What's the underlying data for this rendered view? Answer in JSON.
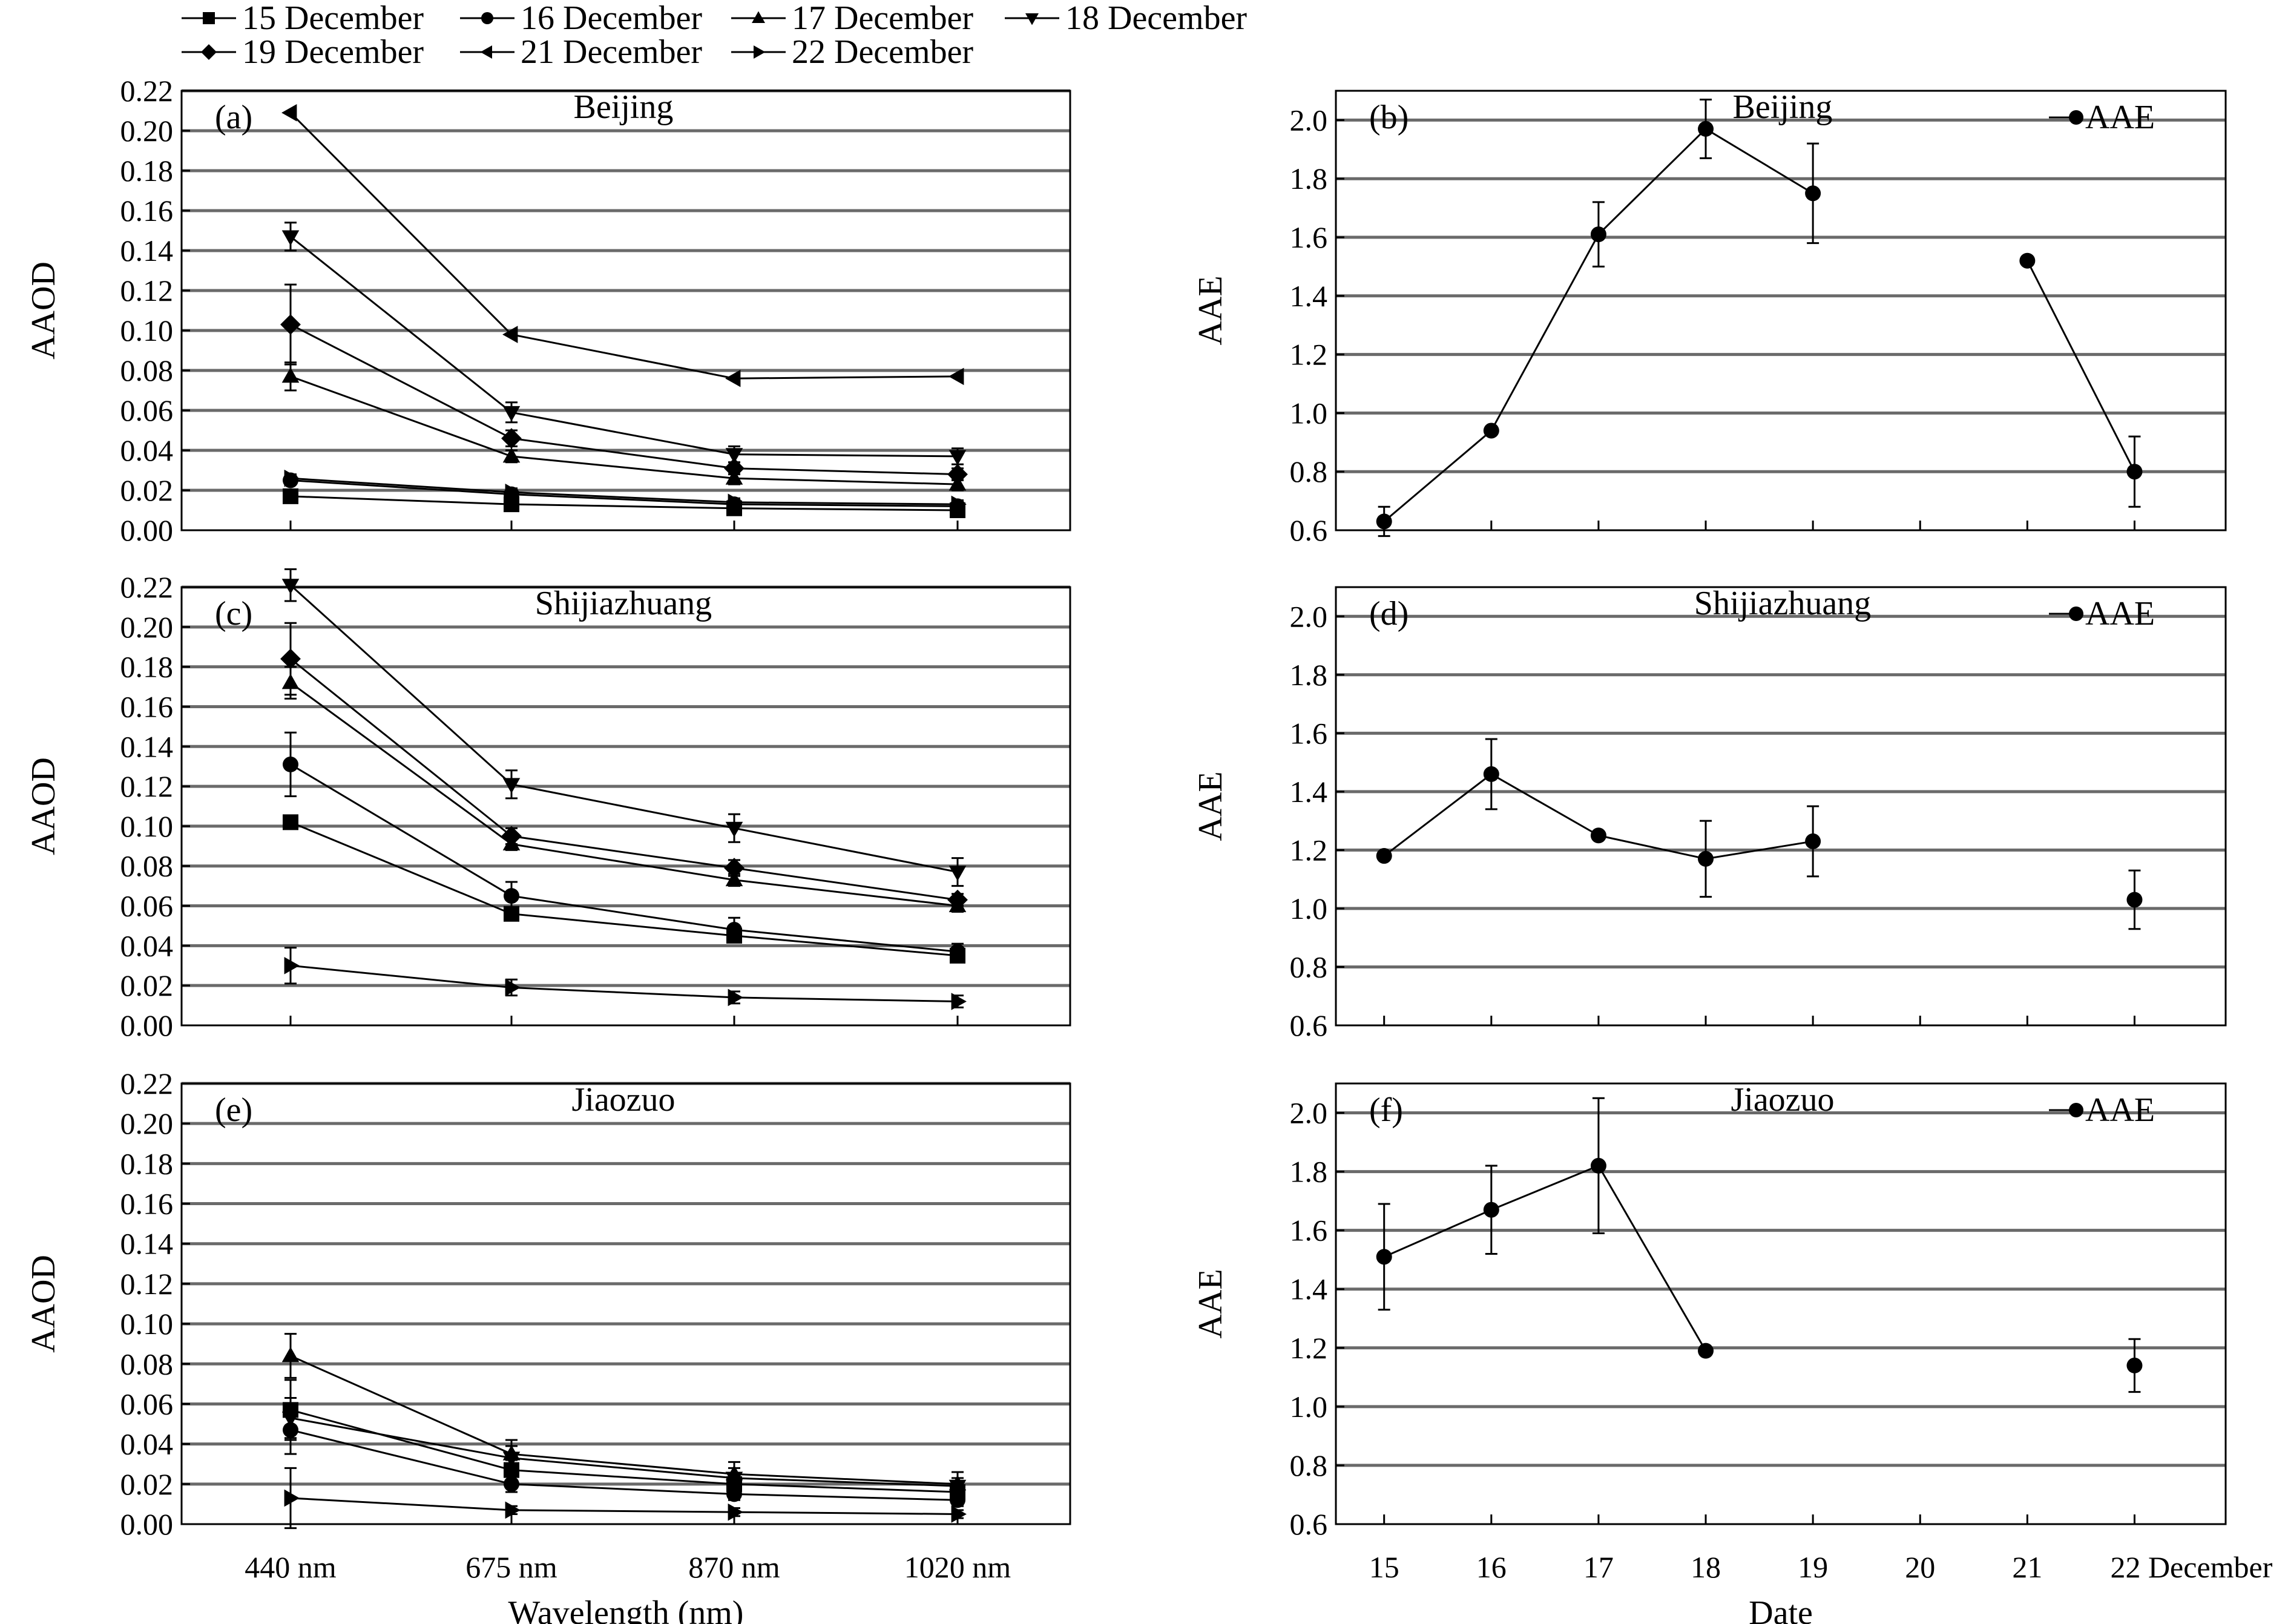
{
  "legend": {
    "entries": [
      {
        "key": "d15",
        "label": "15 December",
        "marker": "square"
      },
      {
        "key": "d16",
        "label": "16 December",
        "marker": "circle"
      },
      {
        "key": "d17",
        "label": "17 December",
        "marker": "triangle-up"
      },
      {
        "key": "d18",
        "label": "18 December",
        "marker": "triangle-down"
      },
      {
        "key": "d19",
        "label": "19 December",
        "marker": "diamond"
      },
      {
        "key": "d21",
        "label": "21 December",
        "marker": "triangle-left"
      },
      {
        "key": "d22",
        "label": "22 December",
        "marker": "triangle-right"
      }
    ]
  },
  "chart_data": [
    {
      "id": "a",
      "type": "line",
      "panel_label": "(a)",
      "title": "Beijing",
      "xlabel": "",
      "ylabel": "AAOD",
      "categories": [
        "440 nm",
        "675 nm",
        "870 nm",
        "1020 nm"
      ],
      "ylim": [
        0,
        0.22
      ],
      "yticks": [
        "0.00",
        "0.02",
        "0.04",
        "0.06",
        "0.08",
        "0.10",
        "0.12",
        "0.14",
        "0.16",
        "0.18",
        "0.20",
        "0.22"
      ],
      "grid": true,
      "series": [
        {
          "key": "d15",
          "name": "15 December",
          "marker": "square",
          "values": [
            0.017,
            0.013,
            0.011,
            0.01
          ],
          "errors": [
            0.002,
            0.002,
            0.002,
            0.002
          ]
        },
        {
          "key": "d16",
          "name": "16 December",
          "marker": "circle",
          "values": [
            0.025,
            0.018,
            0.013,
            0.012
          ],
          "errors": [
            0.002,
            0.002,
            0.002,
            0.002
          ]
        },
        {
          "key": "d17",
          "name": "17 December",
          "marker": "triangle-up",
          "values": [
            0.077,
            0.037,
            0.026,
            0.023
          ],
          "errors": [
            0.007,
            0.003,
            0.003,
            0.003
          ]
        },
        {
          "key": "d18",
          "name": "18 December",
          "marker": "triangle-down",
          "values": [
            0.147,
            0.059,
            0.038,
            0.037
          ],
          "errors": [
            0.007,
            0.005,
            0.004,
            0.004
          ]
        },
        {
          "key": "d19",
          "name": "19 December",
          "marker": "diamond",
          "values": [
            0.103,
            0.046,
            0.031,
            0.028
          ],
          "errors": [
            0.02,
            0.004,
            0.003,
            0.003
          ]
        },
        {
          "key": "d21",
          "name": "21 December",
          "marker": "triangle-left",
          "values": [
            0.209,
            0.098,
            0.076,
            0.077
          ],
          "errors": [
            0,
            0,
            0,
            0
          ]
        },
        {
          "key": "d22",
          "name": "22 December",
          "marker": "triangle-right",
          "values": [
            0.026,
            0.019,
            0.014,
            0.013
          ],
          "errors": [
            0.002,
            0.002,
            0.002,
            0.002
          ]
        }
      ]
    },
    {
      "id": "b",
      "type": "line",
      "panel_label": "(b)",
      "title": "Beijing",
      "xlabel": "",
      "ylabel": "AAE",
      "legend_label": "AAE",
      "x_ticks": [
        "15",
        "16",
        "17",
        "18",
        "19",
        "20",
        "21"
      ],
      "x": [
        15,
        16,
        17,
        18,
        19,
        21,
        22
      ],
      "values": [
        0.63,
        0.94,
        1.61,
        1.97,
        1.75,
        1.52,
        0.8
      ],
      "errors": [
        0.05,
        0,
        0.11,
        0.1,
        0.17,
        0,
        0.12
      ],
      "connect": [
        [
          15,
          16,
          17,
          18,
          19
        ],
        [
          21,
          22
        ]
      ],
      "xlim": [
        14.55,
        22.85
      ],
      "ylim": [
        0.6,
        2.1
      ],
      "yticks": [
        "0.6",
        "0.8",
        "1.0",
        "1.2",
        "1.4",
        "1.6",
        "1.8",
        "2.0"
      ],
      "grid": true
    },
    {
      "id": "c",
      "type": "line",
      "panel_label": "(c)",
      "title": "Shijiazhuang",
      "xlabel": "",
      "ylabel": "AAOD",
      "categories": [
        "440 nm",
        "675 nm",
        "870 nm",
        "1020 nm"
      ],
      "ylim": [
        0,
        0.22
      ],
      "yticks": [
        "0.00",
        "0.02",
        "0.04",
        "0.06",
        "0.08",
        "0.10",
        "0.12",
        "0.14",
        "0.16",
        "0.18",
        "0.20",
        "0.22"
      ],
      "grid": true,
      "series": [
        {
          "key": "d15",
          "name": "15 December",
          "marker": "square",
          "values": [
            0.102,
            0.056,
            0.045,
            0.035
          ],
          "errors": [
            0,
            0.003,
            0.003,
            0.003
          ]
        },
        {
          "key": "d16",
          "name": "16 December",
          "marker": "circle",
          "values": [
            0.131,
            0.065,
            0.048,
            0.037
          ],
          "errors": [
            0.016,
            0.007,
            0.006,
            0.004
          ]
        },
        {
          "key": "d17",
          "name": "17 December",
          "marker": "triangle-up",
          "values": [
            0.172,
            0.091,
            0.073,
            0.06
          ],
          "errors": [
            0.008,
            0.003,
            0.003,
            0.003
          ]
        },
        {
          "key": "d18",
          "name": "18 December",
          "marker": "triangle-down",
          "values": [
            0.221,
            0.121,
            0.099,
            0.077
          ],
          "errors": [
            0.008,
            0.007,
            0.007,
            0.007
          ]
        },
        {
          "key": "d19",
          "name": "19 December",
          "marker": "diamond",
          "values": [
            0.184,
            0.095,
            0.079,
            0.063
          ],
          "errors": [
            0.018,
            0.004,
            0.004,
            0.003
          ]
        },
        {
          "key": "d22",
          "name": "22 December",
          "marker": "triangle-right",
          "values": [
            0.03,
            0.019,
            0.014,
            0.012
          ],
          "errors": [
            0.009,
            0.004,
            0.003,
            0.003
          ]
        }
      ]
    },
    {
      "id": "d",
      "type": "line",
      "panel_label": "(d)",
      "title": "Shijiazhuang",
      "xlabel": "",
      "ylabel": "AAE",
      "legend_label": "AAE",
      "x_ticks": [
        "15",
        "16",
        "17",
        "18",
        "19",
        "20",
        "21"
      ],
      "x": [
        15,
        16,
        17,
        18,
        19,
        22
      ],
      "values": [
        1.18,
        1.46,
        1.25,
        1.17,
        1.23,
        1.03
      ],
      "errors": [
        0,
        0.12,
        0,
        0.13,
        0.12,
        0.1
      ],
      "connect": [
        [
          15,
          16,
          17,
          18,
          19
        ]
      ],
      "xlim": [
        14.55,
        22.85
      ],
      "ylim": [
        0.6,
        2.1
      ],
      "yticks": [
        "0.6",
        "0.8",
        "1.0",
        "1.2",
        "1.4",
        "1.6",
        "1.8",
        "2.0"
      ],
      "grid": true
    },
    {
      "id": "e",
      "type": "line",
      "panel_label": "(e)",
      "title": "Jiaozuo",
      "xlabel": "Wavelength (nm)",
      "ylabel": "AAOD",
      "categories": [
        "440 nm",
        "675 nm",
        "870 nm",
        "1020 nm"
      ],
      "x_tick_labels": [
        "440 nm",
        "675 nm",
        "870 nm",
        "1020 nm"
      ],
      "ylim": [
        0,
        0.22
      ],
      "yticks": [
        "0.00",
        "0.02",
        "0.04",
        "0.06",
        "0.08",
        "0.10",
        "0.12",
        "0.14",
        "0.16",
        "0.18",
        "0.20",
        "0.22"
      ],
      "grid": true,
      "series": [
        {
          "key": "d15",
          "name": "15 December",
          "marker": "square",
          "values": [
            0.057,
            0.027,
            0.02,
            0.016
          ],
          "errors": [
            0.015,
            0.005,
            0.004,
            0.003
          ]
        },
        {
          "key": "d16",
          "name": "16 December",
          "marker": "circle",
          "values": [
            0.047,
            0.02,
            0.015,
            0.012
          ],
          "errors": [
            0.012,
            0.004,
            0.003,
            0.003
          ]
        },
        {
          "key": "d17",
          "name": "17 December",
          "marker": "triangle-up",
          "values": [
            0.084,
            0.035,
            0.025,
            0.02
          ],
          "errors": [
            0.011,
            0.007,
            0.006,
            0.006
          ]
        },
        {
          "key": "d18",
          "name": "18 December",
          "marker": "triangle-down",
          "values": [
            0.053,
            0.033,
            0.023,
            0.019
          ],
          "errors": [
            0.01,
            0.006,
            0.005,
            0.004
          ]
        },
        {
          "key": "d22",
          "name": "22 December",
          "marker": "triangle-right",
          "values": [
            0.013,
            0.007,
            0.006,
            0.005
          ],
          "errors": [
            0.015,
            0.002,
            0.002,
            0.002
          ]
        }
      ]
    },
    {
      "id": "f",
      "type": "line",
      "panel_label": "(f)",
      "title": "Jiaozuo",
      "xlabel": "Date",
      "ylabel": "AAE",
      "legend_label": "AAE",
      "x_ticks": [
        "15",
        "16",
        "17",
        "18",
        "19",
        "20",
        "21"
      ],
      "x_tick_labels": [
        "15",
        "16",
        "17",
        "18",
        "19",
        "20",
        "21"
      ],
      "x_end_label": "22 December",
      "x": [
        15,
        16,
        17,
        18,
        22
      ],
      "values": [
        1.51,
        1.67,
        1.82,
        1.19,
        1.14
      ],
      "errors": [
        0.18,
        0.15,
        0.23,
        0,
        0.09
      ],
      "connect": [
        [
          15,
          16,
          17,
          18
        ]
      ],
      "xlim": [
        14.55,
        22.85
      ],
      "ylim": [
        0.6,
        2.1
      ],
      "yticks": [
        "0.6",
        "0.8",
        "1.0",
        "1.2",
        "1.4",
        "1.6",
        "1.8",
        "2.0"
      ],
      "grid": true
    }
  ]
}
